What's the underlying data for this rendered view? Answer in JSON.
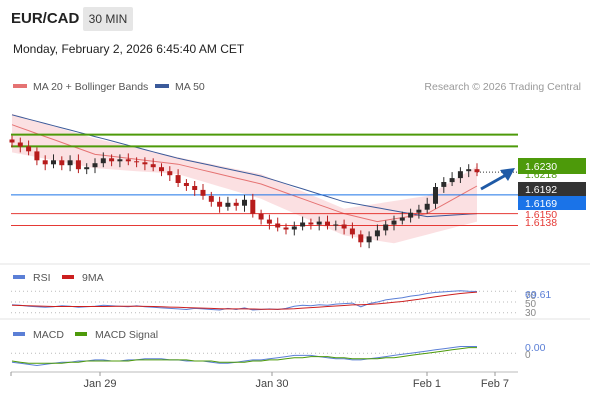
{
  "header": {
    "symbol": "EUR/CAD",
    "timeframe": "30 MIN",
    "datetime": "Monday, February 2, 2026 6:45:40 AM CET"
  },
  "colors": {
    "candle_up": "#2b2b2b",
    "candle_down": "#b71c1c",
    "ma20": "#e57373",
    "bollinger_fill": "#fadadd",
    "ma50": "#3b5a9a",
    "resistance": "#4d9a0a",
    "current": "#1a73e8",
    "support": "#e53935",
    "rsi": "#5b7fd6",
    "rsi_ma": "#cc1f1f",
    "macd": "#5b7fd6",
    "macd_signal": "#4d9a0a",
    "arrow": "#1f5aa6"
  },
  "chart_data": [
    {
      "type": "candlestick",
      "panel": "price",
      "legend": [
        {
          "name": "MA 20 + Bollinger Bands",
          "color": "#e57373"
        },
        {
          "name": "MA 50",
          "color": "#3b5a9a"
        }
      ],
      "credit": "Research © 2026 Trading Central",
      "x_ticks": [
        "Jan 29",
        "Jan 30",
        "Feb 1",
        "Feb 7"
      ],
      "ylim": [
        1.6095,
        1.6265
      ],
      "closes": [
        1.6222,
        1.6218,
        1.6213,
        1.6204,
        1.62,
        1.6204,
        1.6199,
        1.6204,
        1.6195,
        1.6197,
        1.6201,
        1.6206,
        1.6203,
        1.6205,
        1.6203,
        1.6202,
        1.62,
        1.6197,
        1.6193,
        1.6189,
        1.6181,
        1.6178,
        1.6174,
        1.6168,
        1.6162,
        1.6157,
        1.6161,
        1.6158,
        1.6164,
        1.615,
        1.6144,
        1.614,
        1.6136,
        1.6134,
        1.6137,
        1.6141,
        1.6139,
        1.6142,
        1.6138,
        1.6139,
        1.6135,
        1.6129,
        1.6121,
        1.6127,
        1.6133,
        1.6139,
        1.6143,
        1.6146,
        1.6151,
        1.6154,
        1.616,
        1.6177,
        1.6182,
        1.6186,
        1.6193,
        1.6195,
        1.6192
      ],
      "ma20_points": [
        [
          0,
          1.624
        ],
        [
          10,
          1.621
        ],
        [
          20,
          1.62
        ],
        [
          30,
          1.618
        ],
        [
          40,
          1.615
        ],
        [
          44,
          1.6142
        ],
        [
          50,
          1.615
        ],
        [
          56,
          1.6178
        ]
      ],
      "bb_upper": [
        [
          0,
          1.6251
        ],
        [
          10,
          1.6226
        ],
        [
          20,
          1.6207
        ],
        [
          30,
          1.619
        ],
        [
          40,
          1.6155
        ],
        [
          50,
          1.6168
        ],
        [
          56,
          1.6198
        ]
      ],
      "bb_lower": [
        [
          0,
          1.6212
        ],
        [
          10,
          1.6196
        ],
        [
          20,
          1.619
        ],
        [
          30,
          1.6165
        ],
        [
          40,
          1.6128
        ],
        [
          46,
          1.612
        ],
        [
          56,
          1.6142
        ]
      ],
      "ma50_points": [
        [
          0,
          1.625
        ],
        [
          10,
          1.6228
        ],
        [
          20,
          1.6206
        ],
        [
          30,
          1.6188
        ],
        [
          40,
          1.6162
        ],
        [
          50,
          1.6147
        ],
        [
          56,
          1.615
        ]
      ],
      "levels": [
        {
          "value": "1.6230",
          "kind": "resistance"
        },
        {
          "value": "1.6218",
          "kind": "resistance"
        },
        {
          "value": "1.6192",
          "kind": "last"
        },
        {
          "value": "1.6169",
          "kind": "pivot"
        },
        {
          "value": "1.6150",
          "kind": "support"
        },
        {
          "value": "1.6138",
          "kind": "support"
        }
      ]
    },
    {
      "type": "line",
      "panel": "rsi",
      "legend": [
        {
          "name": "RSI",
          "color": "#5b7fd6"
        },
        {
          "name": "9MA",
          "color": "#cc1f1f"
        }
      ],
      "ylim": [
        20,
        80
      ],
      "reference_levels": [
        "70",
        "50",
        "30"
      ],
      "last_value": "69.61",
      "series": [
        {
          "name": "RSI",
          "values": [
            45,
            44,
            42,
            41,
            40,
            41,
            43,
            42,
            40,
            41,
            42,
            44,
            43,
            42,
            41,
            43,
            41,
            40,
            39,
            38,
            37,
            36,
            38,
            37,
            36,
            35,
            38,
            36,
            39,
            35,
            36,
            37,
            36,
            38,
            42,
            44,
            43,
            45,
            44,
            46,
            47,
            48,
            41,
            47,
            50,
            54,
            56,
            58,
            61,
            63,
            66,
            68,
            69,
            70,
            71,
            70,
            69.61
          ]
        },
        {
          "name": "9MA",
          "values": [
            44,
            43.5,
            43,
            42.5,
            42,
            41.5,
            41.5,
            41.5,
            41.5,
            41.5,
            41.5,
            41.5,
            41.8,
            42,
            42,
            42,
            41.8,
            41.5,
            41,
            40.5,
            40,
            39.5,
            39,
            38.5,
            38,
            37.5,
            37,
            37,
            37,
            36.8,
            36.5,
            36.5,
            36.5,
            36.8,
            37.5,
            38.5,
            39.5,
            40.5,
            41.5,
            42.5,
            43.5,
            44.5,
            45,
            45.5,
            46.5,
            48,
            49.5,
            51,
            53,
            55,
            57.5,
            60,
            62,
            64,
            66,
            67.5,
            68.5
          ]
        }
      ]
    },
    {
      "type": "line",
      "panel": "macd",
      "legend": [
        {
          "name": "MACD",
          "color": "#5b7fd6"
        },
        {
          "name": "MACD Signal",
          "color": "#4d9a0a"
        }
      ],
      "ylim": [
        -0.0015,
        0.001
      ],
      "reference_levels": [
        "0"
      ],
      "last_value": "0.00",
      "series": [
        {
          "name": "MACD",
          "values": [
            -0.0008,
            -0.0009,
            -0.001,
            -0.0011,
            -0.001,
            -0.0009,
            -0.0008,
            -0.0008,
            -0.0007,
            -0.0007,
            -0.0006,
            -0.0006,
            -0.0007,
            -0.0007,
            -0.0006,
            -0.0006,
            -0.0005,
            -0.0005,
            -0.0005,
            -0.0006,
            -0.0006,
            -0.0007,
            -0.0007,
            -0.0007,
            -0.0008,
            -0.0009,
            -0.0009,
            -0.0008,
            -0.0007,
            -0.0006,
            -0.0006,
            -0.0005,
            -0.0004,
            -0.0003,
            -0.0002,
            -0.0002,
            -0.0002,
            -0.0003,
            -0.0004,
            -0.0005,
            -0.0005,
            -0.0006,
            -0.0006,
            -0.0005,
            -0.0004,
            -0.0003,
            -0.0002,
            -0.0001,
            0.0,
            0.0001,
            0.0002,
            0.0003,
            0.0004,
            0.0005,
            0.0006,
            0.0006,
            0.0006
          ]
        },
        {
          "name": "MACD Signal",
          "values": [
            -0.0007,
            -0.0008,
            -0.0009,
            -0.0009,
            -0.0009,
            -0.0009,
            -0.0009,
            -0.0008,
            -0.0008,
            -0.0007,
            -0.0007,
            -0.0007,
            -0.0007,
            -0.0007,
            -0.0007,
            -0.0006,
            -0.0006,
            -0.0006,
            -0.0006,
            -0.0006,
            -0.0006,
            -0.0006,
            -0.0007,
            -0.0007,
            -0.0007,
            -0.0008,
            -0.0008,
            -0.0008,
            -0.0008,
            -0.0007,
            -0.0007,
            -0.0006,
            -0.0006,
            -0.0005,
            -0.0004,
            -0.0004,
            -0.0003,
            -0.0003,
            -0.0003,
            -0.0004,
            -0.0004,
            -0.0005,
            -0.0005,
            -0.0005,
            -0.0005,
            -0.0004,
            -0.0004,
            -0.0003,
            -0.0002,
            -0.0001,
            0.0,
            0.0001,
            0.0002,
            0.0003,
            0.0004,
            0.0005,
            0.0005
          ]
        }
      ]
    }
  ]
}
